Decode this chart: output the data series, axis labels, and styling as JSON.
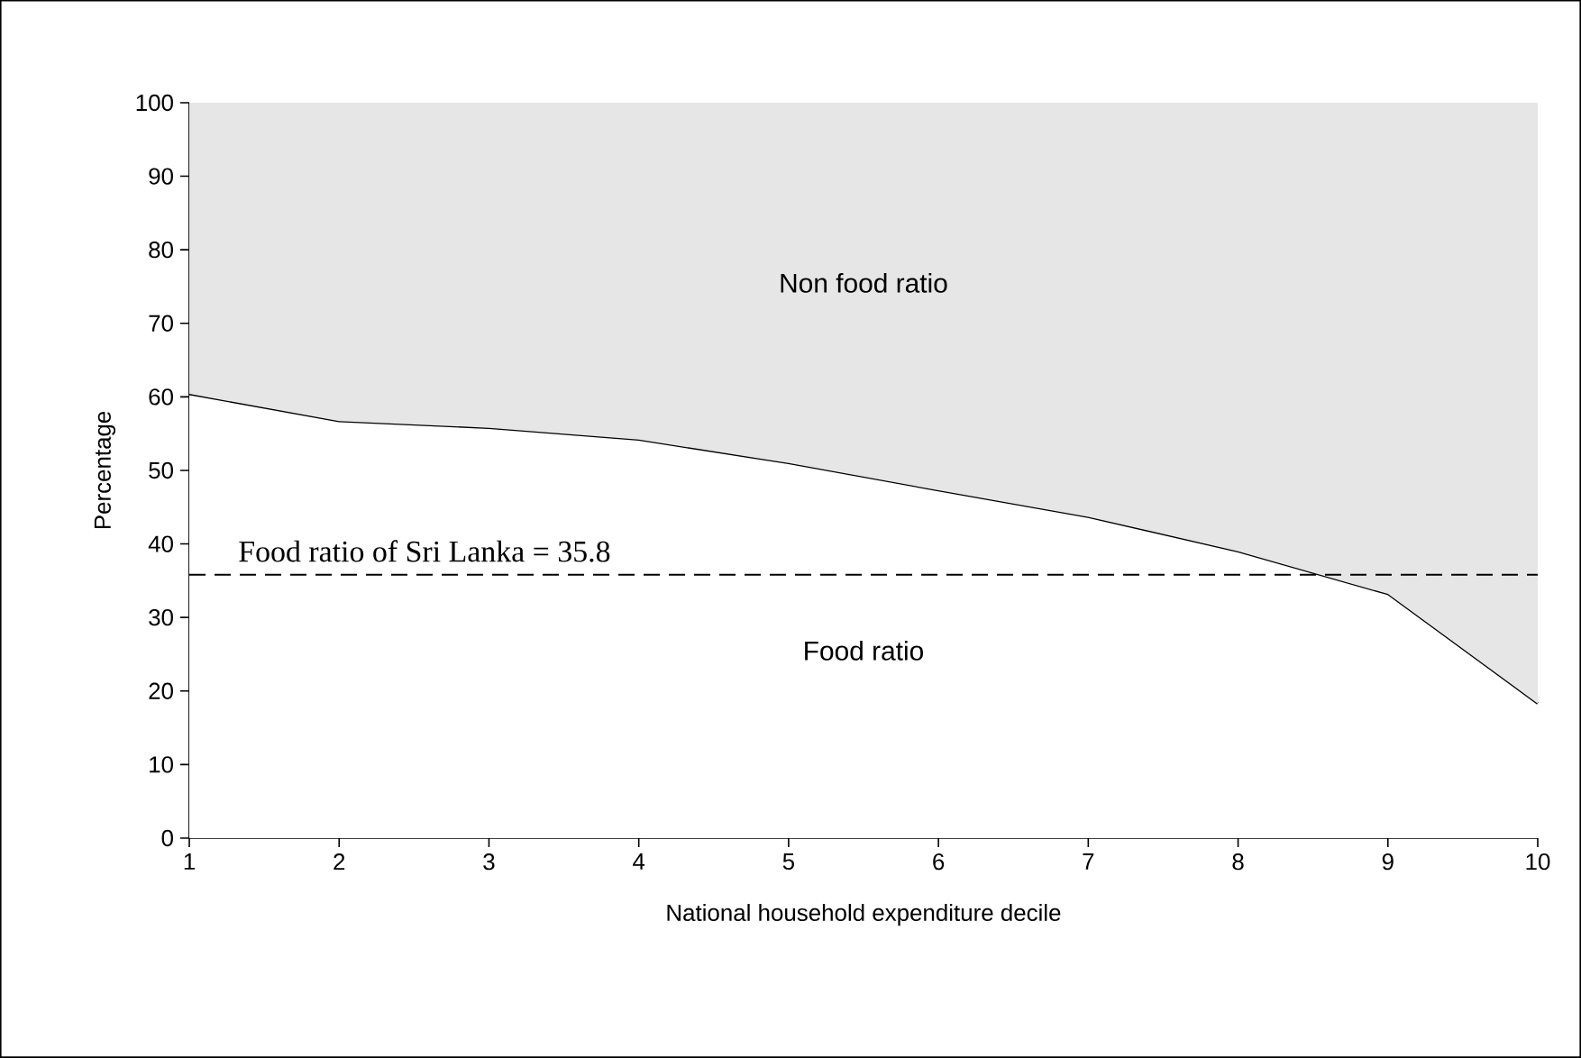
{
  "chart_data": {
    "type": "area",
    "stacked": true,
    "xlabel": "National household expenditure  decile",
    "ylabel": "Percentage",
    "x": [
      1,
      2,
      3,
      4,
      5,
      6,
      7,
      8,
      9,
      10
    ],
    "series": [
      {
        "name": "Food ratio",
        "color": "#000000",
        "values": [
          60.4,
          56.7,
          55.8,
          54.2,
          51,
          47.3,
          43.7,
          39,
          33.2,
          18.3
        ]
      },
      {
        "name": "Non food ratio",
        "color": "#e6e6e6",
        "values": [
          39.6,
          43.3,
          44.2,
          45.8,
          49,
          52.7,
          56.3,
          61,
          66.8,
          81.7
        ]
      }
    ],
    "xlim": [
      1,
      10
    ],
    "xticks": [
      1,
      2,
      3,
      4,
      5,
      6,
      7,
      8,
      9,
      10
    ],
    "ylim": [
      0,
      100
    ],
    "yticks": [
      0,
      10,
      20,
      30,
      40,
      50,
      60,
      70,
      80,
      90,
      100
    ],
    "ref_lines": [
      {
        "axis": "y",
        "value": 35.8,
        "label": "Food ratio of Sri Lanka = 35.8",
        "color": "#000000",
        "line_style": "dashed"
      }
    ],
    "grid": false,
    "legend": false
  }
}
